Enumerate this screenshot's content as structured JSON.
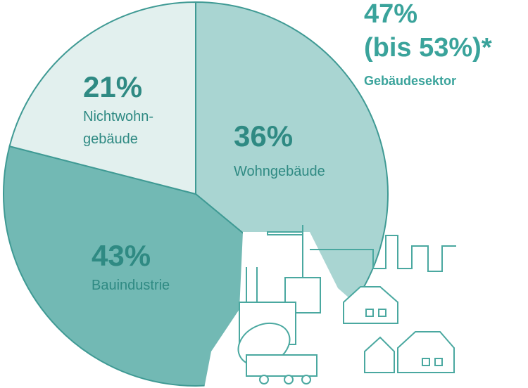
{
  "chart_data": {
    "type": "pie",
    "categories": [
      "Wohngebäude",
      "Bauindustrie",
      "Nichtwohn-\ngebäude"
    ],
    "values": [
      36,
      43,
      21
    ],
    "value_labels": [
      "36%",
      "43%",
      "21%"
    ],
    "colors": [
      "#a9d5d2",
      "#72b9b4",
      "#e2f0ee"
    ],
    "annotation": [
      "47%",
      "(bis 53%)*",
      "Gebäudesektor"
    ]
  }
}
